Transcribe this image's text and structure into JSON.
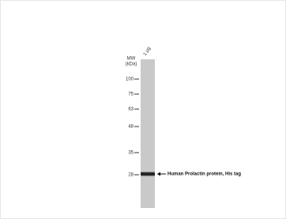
{
  "lane_label": "1 μg",
  "mw_label": [
    "MW",
    "(kDa)"
  ],
  "markers": [
    "100",
    "75",
    "63",
    "48",
    "35",
    "28"
  ],
  "band_label": "Human Prolactin protein, His tag"
}
